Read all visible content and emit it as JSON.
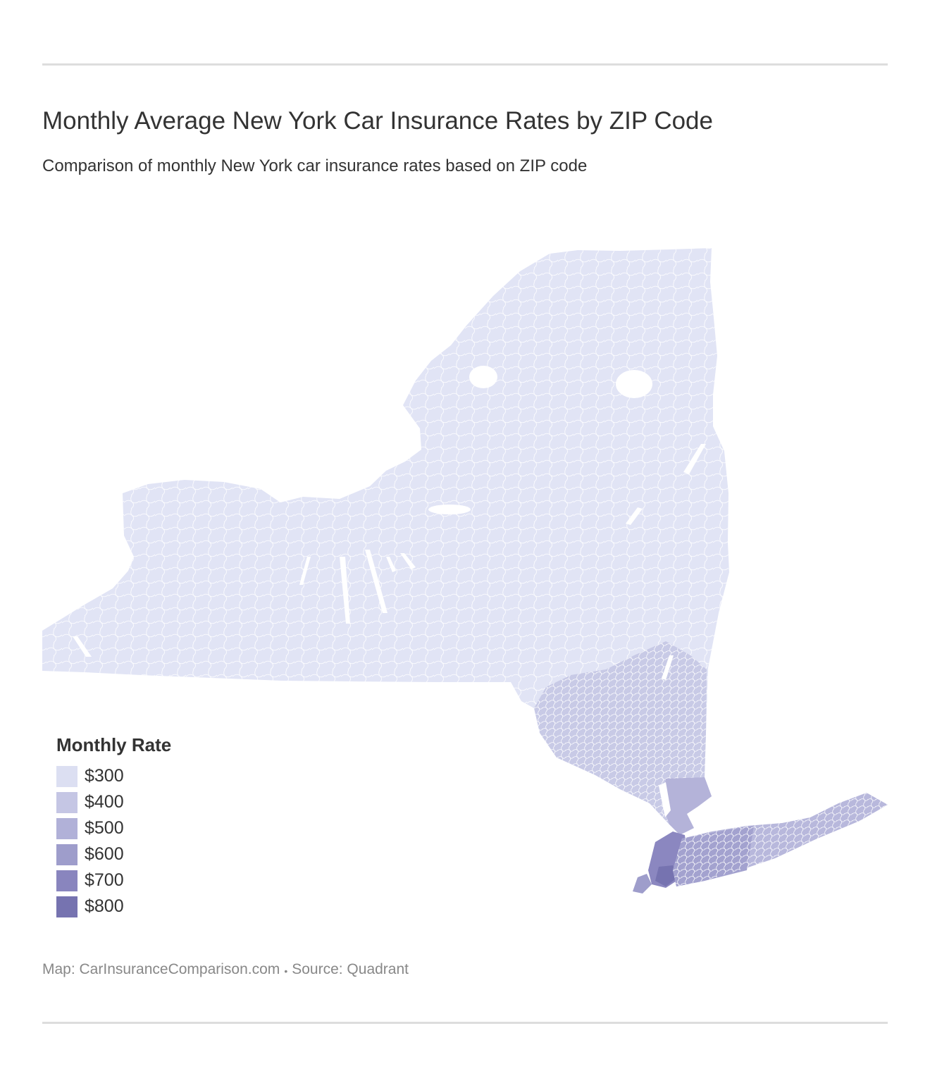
{
  "title": "Monthly Average New York Car Insurance Rates by ZIP Code",
  "subtitle": "Comparison of monthly New York car insurance rates based on ZIP code",
  "map": {
    "region": "New York",
    "base_color": "#e1e4f5",
    "zip_border_color": "#ffffff"
  },
  "legend": {
    "title": "Monthly Rate",
    "items": [
      {
        "label": "$300",
        "color": "#dcdff2"
      },
      {
        "label": "$400",
        "color": "#c5c6e4"
      },
      {
        "label": "$500",
        "color": "#b1b1d8"
      },
      {
        "label": "$600",
        "color": "#9e9dcb"
      },
      {
        "label": "$700",
        "color": "#8985be"
      },
      {
        "label": "$800",
        "color": "#7673b0"
      }
    ]
  },
  "footer": {
    "map_credit": "Map: CarInsuranceComparison.com",
    "separator": "•",
    "source": "Source: Quadrant"
  }
}
